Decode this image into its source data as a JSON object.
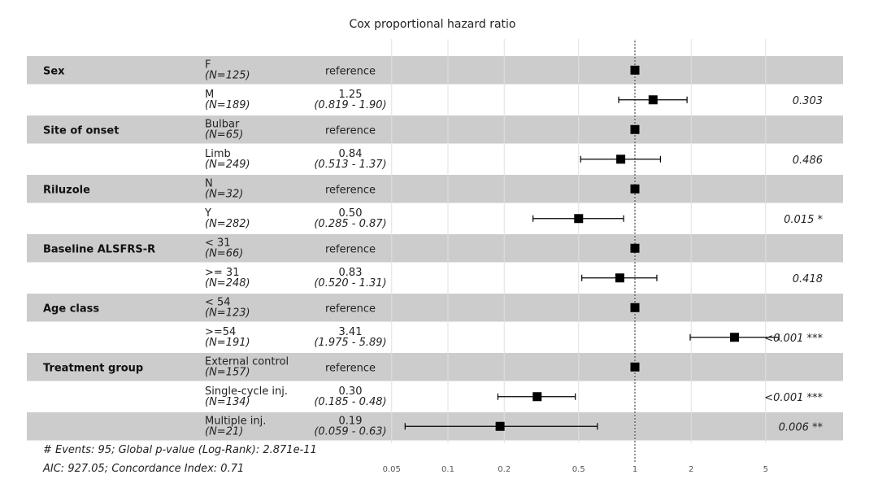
{
  "chart_data": {
    "type": "forest",
    "title": "Cox proportional hazard ratio",
    "x_scale": "log",
    "x_ticks": [
      0.05,
      0.1,
      0.2,
      0.5,
      1,
      2,
      5
    ],
    "x_tick_labels": [
      "0.05",
      "0.1",
      "0.2",
      "0.5",
      "1",
      "2",
      "5"
    ],
    "reference_line": 1,
    "rows": [
      {
        "variable": "Sex",
        "level": "F",
        "n": "(N=125)",
        "hr_text": "reference",
        "ci_text": "",
        "hr": 1,
        "lo": null,
        "hi": null,
        "p": ""
      },
      {
        "variable": "",
        "level": "M",
        "n": "(N=189)",
        "hr_text": "1.25",
        "ci_text": "(0.819 - 1.90)",
        "hr": 1.25,
        "lo": 0.819,
        "hi": 1.9,
        "p": "0.303"
      },
      {
        "variable": "Site of onset",
        "level": "Bulbar",
        "n": "(N=65)",
        "hr_text": "reference",
        "ci_text": "",
        "hr": 1,
        "lo": null,
        "hi": null,
        "p": ""
      },
      {
        "variable": "",
        "level": "Limb",
        "n": "(N=249)",
        "hr_text": "0.84",
        "ci_text": "(0.513 - 1.37)",
        "hr": 0.84,
        "lo": 0.513,
        "hi": 1.37,
        "p": "0.486"
      },
      {
        "variable": "Riluzole",
        "level": "N",
        "n": "(N=32)",
        "hr_text": "reference",
        "ci_text": "",
        "hr": 1,
        "lo": null,
        "hi": null,
        "p": ""
      },
      {
        "variable": "",
        "level": "Y",
        "n": "(N=282)",
        "hr_text": "0.50",
        "ci_text": "(0.285 - 0.87)",
        "hr": 0.5,
        "lo": 0.285,
        "hi": 0.87,
        "p": "0.015 *"
      },
      {
        "variable": "Baseline ALSFRS-R",
        "level": "< 31",
        "n": "(N=66)",
        "hr_text": "reference",
        "ci_text": "",
        "hr": 1,
        "lo": null,
        "hi": null,
        "p": ""
      },
      {
        "variable": "",
        "level": ">= 31",
        "n": "(N=248)",
        "hr_text": "0.83",
        "ci_text": "(0.520 - 1.31)",
        "hr": 0.83,
        "lo": 0.52,
        "hi": 1.31,
        "p": "0.418"
      },
      {
        "variable": "Age class",
        "level": "< 54",
        "n": "(N=123)",
        "hr_text": "reference",
        "ci_text": "",
        "hr": 1,
        "lo": null,
        "hi": null,
        "p": ""
      },
      {
        "variable": "",
        "level": ">=54",
        "n": "(N=191)",
        "hr_text": "3.41",
        "ci_text": "(1.975 - 5.89)",
        "hr": 3.41,
        "lo": 1.975,
        "hi": 5.89,
        "p": "<0.001 ***"
      },
      {
        "variable": "Treatment group",
        "level": "External control",
        "n": "(N=157)",
        "hr_text": "reference",
        "ci_text": "",
        "hr": 1,
        "lo": null,
        "hi": null,
        "p": ""
      },
      {
        "variable": "",
        "level": "Single-cycle inj.",
        "n": "(N=134)",
        "hr_text": "0.30",
        "ci_text": "(0.185 - 0.48)",
        "hr": 0.3,
        "lo": 0.185,
        "hi": 0.48,
        "p": "<0.001 ***"
      },
      {
        "variable": "",
        "level": "Multiple inj.",
        "n": "(N=21)",
        "hr_text": "0.19",
        "ci_text": "(0.059 - 0.63)",
        "hr": 0.19,
        "lo": 0.059,
        "hi": 0.63,
        "p": "0.006 **"
      }
    ],
    "footnote1": "# Events: 95; Global p-value (Log-Rank): 2.871e-11",
    "footnote2": "AIC: 927.05; Concordance Index: 0.71"
  },
  "colors": {
    "band": "#CCCCCC",
    "grid": "#E0E0E0",
    "mark": "#000000"
  }
}
